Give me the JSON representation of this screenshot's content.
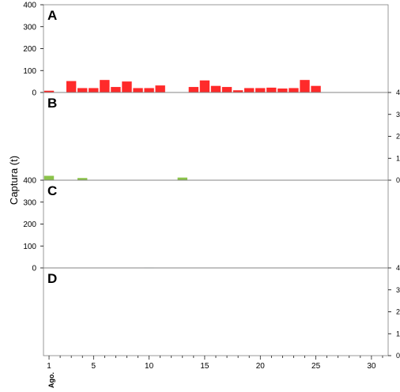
{
  "chart_data": {
    "type": "bar",
    "ylabel": "Captura (t)",
    "x_ticks": [
      1,
      5,
      10,
      15,
      20,
      25,
      30
    ],
    "x_range": [
      1,
      31
    ],
    "month_label": "Ago.",
    "panels": [
      {
        "id": "A",
        "label": "A",
        "color": "#ff2a2a",
        "axis_side": "left",
        "ylim": [
          0,
          400
        ],
        "y_ticks": [
          0,
          100,
          200,
          300,
          400
        ],
        "x": [
          1,
          3,
          4,
          5,
          6,
          7,
          8,
          9,
          10,
          11,
          14,
          15,
          16,
          17,
          18,
          19,
          20,
          21,
          22,
          23,
          24,
          25
        ],
        "values": [
          8,
          52,
          20,
          20,
          57,
          25,
          50,
          20,
          20,
          32,
          25,
          55,
          30,
          25,
          10,
          20,
          20,
          22,
          18,
          20,
          57,
          30
        ]
      },
      {
        "id": "B",
        "label": "B",
        "color": "#8bc34a",
        "axis_side": "right",
        "ylim": [
          0,
          4
        ],
        "y_ticks": [
          0,
          1,
          2,
          3,
          4
        ],
        "x": [
          1,
          4,
          13
        ],
        "values": [
          0.2,
          0.1,
          0.12
        ]
      },
      {
        "id": "C",
        "label": "C",
        "color": "#1f8fbf",
        "axis_side": "left",
        "ylim": [
          0,
          400
        ],
        "y_ticks": [
          0,
          100,
          200,
          300,
          400
        ],
        "x": [
          10
        ],
        "values": [
          1
        ]
      },
      {
        "id": "D",
        "label": "D",
        "color": "#6a3d9a",
        "axis_side": "right",
        "ylim": [
          0,
          4
        ],
        "y_ticks": [
          0,
          1,
          2,
          3,
          4
        ],
        "x": [],
        "values": []
      }
    ]
  }
}
